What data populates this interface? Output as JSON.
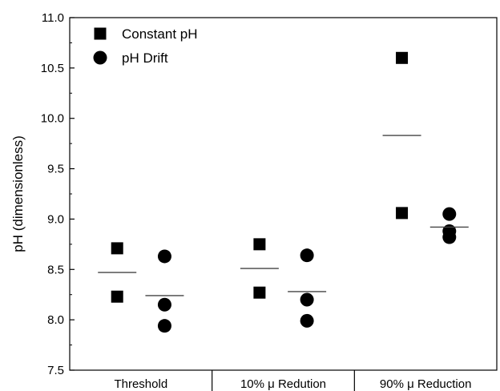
{
  "chart_data": {
    "type": "scatter",
    "title": "",
    "xlabel": "",
    "ylabel": "pH (dimensionless)",
    "ylim": [
      7.5,
      11.0
    ],
    "y_ticks": [
      "7.5",
      "8.0",
      "8.5",
      "9.0",
      "9.5",
      "10.0",
      "10.5",
      "11.0"
    ],
    "categories": [
      "Threshold",
      "10% μ Redution",
      "90% μ Reduction"
    ],
    "legend_position": "top-left",
    "grid": false,
    "series": [
      {
        "name": "Constant pH",
        "marker": "square",
        "color": "#000000",
        "points": [
          [
            0,
            8.71
          ],
          [
            0,
            8.23
          ],
          [
            1,
            8.75
          ],
          [
            1,
            8.27
          ],
          [
            2,
            10.6
          ],
          [
            2,
            9.06
          ]
        ],
        "means": [
          8.47,
          8.51,
          9.83
        ]
      },
      {
        "name": "pH Drift",
        "marker": "circle",
        "color": "#000000",
        "points": [
          [
            0,
            8.63
          ],
          [
            0,
            8.15
          ],
          [
            0,
            7.94
          ],
          [
            1,
            8.64
          ],
          [
            1,
            8.2
          ],
          [
            1,
            7.99
          ],
          [
            2,
            9.05
          ],
          [
            2,
            8.88
          ],
          [
            2,
            8.82
          ]
        ],
        "means": [
          8.24,
          8.28,
          8.92
        ]
      }
    ]
  }
}
